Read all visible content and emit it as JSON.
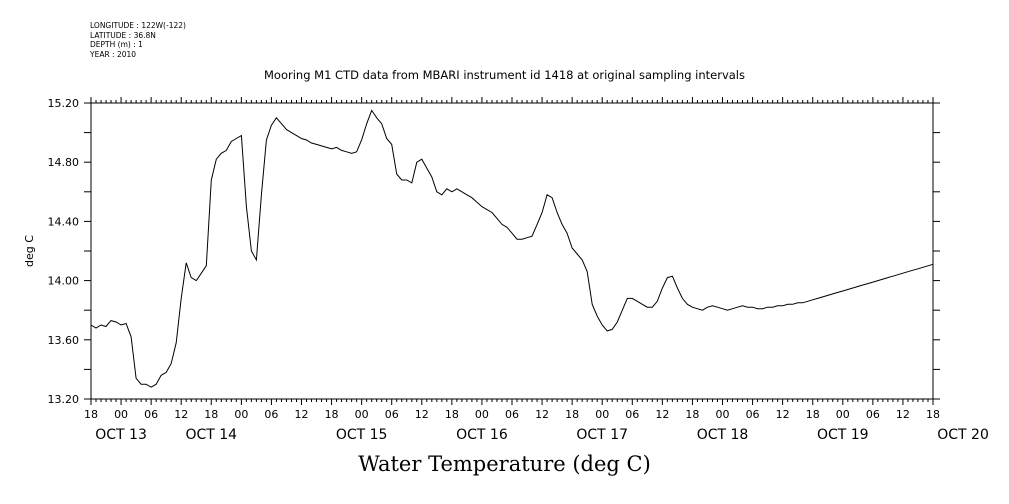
{
  "header": {
    "meta_lines": [
      "LONGITUDE : 122W(-122)",
      "LATITUDE : 36.8N",
      "DEPTH (m) : 1",
      "YEAR : 2010"
    ]
  },
  "chart_data": {
    "type": "line",
    "title": "Mooring M1 CTD data from MBARI instrument id 1418 at original sampling intervals",
    "xlabel": "Water Temperature (deg C)",
    "ylabel": "deg C",
    "ylim": [
      13.2,
      15.2
    ],
    "yticks": [
      "13.20",
      "13.60",
      "14.00",
      "14.40",
      "14.80",
      "15.20"
    ],
    "xlim_hours": [
      0,
      168
    ],
    "x_start": "OCT 12 18:00",
    "x_end": "OCT 19 18:00",
    "hour_ticks": [
      "18",
      "00",
      "06",
      "12",
      "18",
      "00",
      "06",
      "12",
      "18",
      "00",
      "06",
      "12",
      "18",
      "00",
      "06",
      "12",
      "18",
      "00",
      "06",
      "12",
      "18",
      "00",
      "06",
      "12",
      "18",
      "00",
      "06",
      "12",
      "18"
    ],
    "day_labels": [
      {
        "label": "OCT 13",
        "hour": 6
      },
      {
        "label": "OCT 14",
        "hour": 24
      },
      {
        "label": "OCT 15",
        "hour": 54
      },
      {
        "label": "OCT 16",
        "hour": 78
      },
      {
        "label": "OCT 17",
        "hour": 102
      },
      {
        "label": "OCT 18",
        "hour": 126
      },
      {
        "label": "OCT 19",
        "hour": 150
      },
      {
        "label": "OCT 20",
        "hour": 174
      }
    ],
    "grid": false,
    "series": [
      {
        "color": "#000000",
        "x": [
          0,
          1,
          2,
          3,
          4,
          5,
          6,
          7,
          8,
          9,
          10,
          11,
          12,
          13,
          14,
          15,
          16,
          17,
          18,
          19,
          20,
          21,
          22,
          23,
          24,
          25,
          26,
          27,
          28,
          29,
          30,
          31,
          32,
          33,
          34,
          35,
          36,
          37,
          38,
          39,
          40,
          41,
          42,
          43,
          44,
          45,
          46,
          47,
          48,
          49,
          50,
          51,
          52,
          53,
          54,
          55,
          56,
          57,
          58,
          59,
          60,
          61,
          62,
          63,
          64,
          65,
          66,
          67,
          68,
          69,
          70,
          71,
          72,
          73,
          74,
          75,
          76,
          77,
          78,
          79,
          80,
          81,
          82,
          83,
          84,
          85,
          86,
          87,
          88,
          89,
          90,
          91,
          92,
          93,
          94,
          95,
          96,
          97,
          98,
          99,
          100,
          101,
          102,
          103,
          104,
          105,
          106,
          107,
          108,
          109,
          110,
          111,
          112,
          113,
          114,
          115,
          116,
          117,
          118,
          119,
          120,
          121,
          122,
          123,
          124,
          125,
          126,
          127,
          128,
          129,
          130,
          131,
          132,
          133,
          134,
          135,
          136,
          137,
          138,
          139,
          140,
          141,
          142,
          143,
          144,
          145,
          146,
          147,
          148,
          149,
          150,
          151,
          152,
          153,
          154,
          155,
          156,
          157,
          158,
          159,
          160,
          161,
          162,
          163,
          164,
          165,
          166,
          167,
          168
        ],
        "y": [
          13.7,
          13.68,
          13.7,
          13.69,
          13.73,
          13.72,
          13.7,
          13.71,
          13.62,
          13.34,
          13.3,
          13.3,
          13.28,
          13.3,
          13.36,
          13.38,
          13.44,
          13.58,
          13.88,
          14.12,
          14.02,
          14.0,
          14.05,
          14.1,
          14.68,
          14.82,
          14.86,
          14.88,
          14.94,
          14.96,
          14.98,
          14.5,
          14.2,
          14.14,
          14.58,
          14.95,
          15.05,
          15.1,
          15.06,
          15.02,
          15.0,
          14.98,
          14.96,
          14.95,
          14.93,
          14.92,
          14.91,
          14.9,
          14.89,
          14.9,
          14.88,
          14.87,
          14.86,
          14.87,
          14.95,
          15.06,
          15.15,
          15.1,
          15.06,
          14.96,
          14.92,
          14.72,
          14.68,
          14.68,
          14.66,
          14.8,
          14.82,
          14.76,
          14.7,
          14.6,
          14.58,
          14.62,
          14.6,
          14.62,
          14.6,
          14.58,
          14.56,
          14.53,
          14.5,
          14.48,
          14.46,
          14.42,
          14.38,
          14.36,
          14.32,
          14.28,
          14.28,
          14.29,
          14.3,
          14.38,
          14.46,
          14.58,
          14.56,
          14.46,
          14.38,
          14.32,
          14.22,
          14.18,
          14.14,
          14.06,
          13.84,
          13.76,
          13.7,
          13.66,
          13.67,
          13.72,
          13.8,
          13.88,
          13.88,
          13.86,
          13.84,
          13.82,
          13.82,
          13.86,
          13.95,
          14.02,
          14.03,
          13.95,
          13.88,
          13.84,
          13.82,
          13.81,
          13.8,
          13.82,
          13.83,
          13.82,
          13.81,
          13.8,
          13.81,
          13.82,
          13.83,
          13.82,
          13.82,
          13.81,
          13.81,
          13.82,
          13.82,
          13.83,
          13.83,
          13.84,
          13.84,
          13.85,
          13.85,
          13.86,
          13.87,
          13.88,
          13.89,
          13.9,
          13.91,
          13.92,
          13.93,
          13.94,
          13.95,
          13.96,
          13.97,
          13.98,
          13.99,
          14.0,
          14.01,
          14.02,
          14.03,
          14.04,
          14.05,
          14.06,
          14.07,
          14.08,
          14.09,
          14.1,
          14.11
        ]
      }
    ]
  }
}
